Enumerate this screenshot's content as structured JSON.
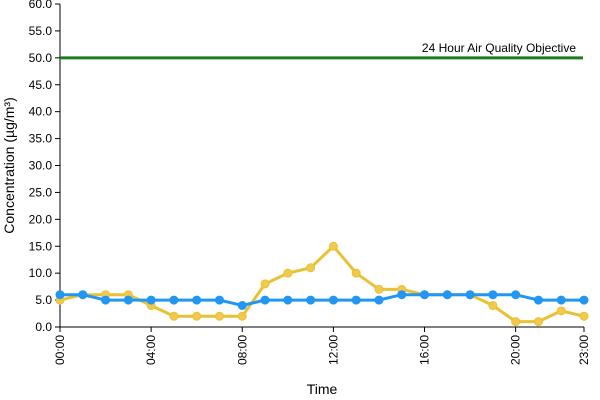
{
  "chart_data": {
    "type": "line",
    "title": "",
    "xlabel": "Time",
    "ylabel": "Concentration (µg/m³)",
    "ylim": [
      0,
      60
    ],
    "yticks": [
      "0.0",
      "5.0",
      "10.0",
      "15.0",
      "20.0",
      "25.0",
      "30.0",
      "35.0",
      "40.0",
      "45.0",
      "50.0",
      "55.0",
      "60.0"
    ],
    "x": [
      0,
      1,
      2,
      3,
      4,
      5,
      6,
      7,
      8,
      9,
      10,
      11,
      12,
      13,
      14,
      15,
      16,
      17,
      18,
      19,
      20,
      21,
      22,
      23
    ],
    "xtick_positions": [
      0,
      4,
      8,
      12,
      16,
      20,
      23
    ],
    "xtick_labels": [
      "00:00",
      "04:00",
      "08:00",
      "12:00",
      "16:00",
      "20:00",
      "23:00"
    ],
    "grid": "y-axis left only, no gridlines",
    "legend": "none",
    "objective": {
      "value": 50,
      "label": "24 Hour Air Quality Objective",
      "color": "#1e7a1e"
    },
    "series": [
      {
        "color": "#e8c234",
        "marker_fill": "#f2c94c",
        "values": [
          5,
          6,
          6,
          6,
          4,
          2,
          2,
          2,
          2,
          8,
          10,
          11,
          15,
          10,
          7,
          7,
          6,
          6,
          6,
          4,
          1,
          1,
          3,
          2
        ]
      },
      {
        "color": "#2196f3",
        "marker_fill": "#2196f3",
        "values": [
          6,
          6,
          5,
          5,
          5,
          5,
          5,
          5,
          4,
          5,
          5,
          5,
          5,
          5,
          5,
          6,
          6,
          6,
          6,
          6,
          6,
          5,
          5,
          5
        ]
      }
    ]
  }
}
